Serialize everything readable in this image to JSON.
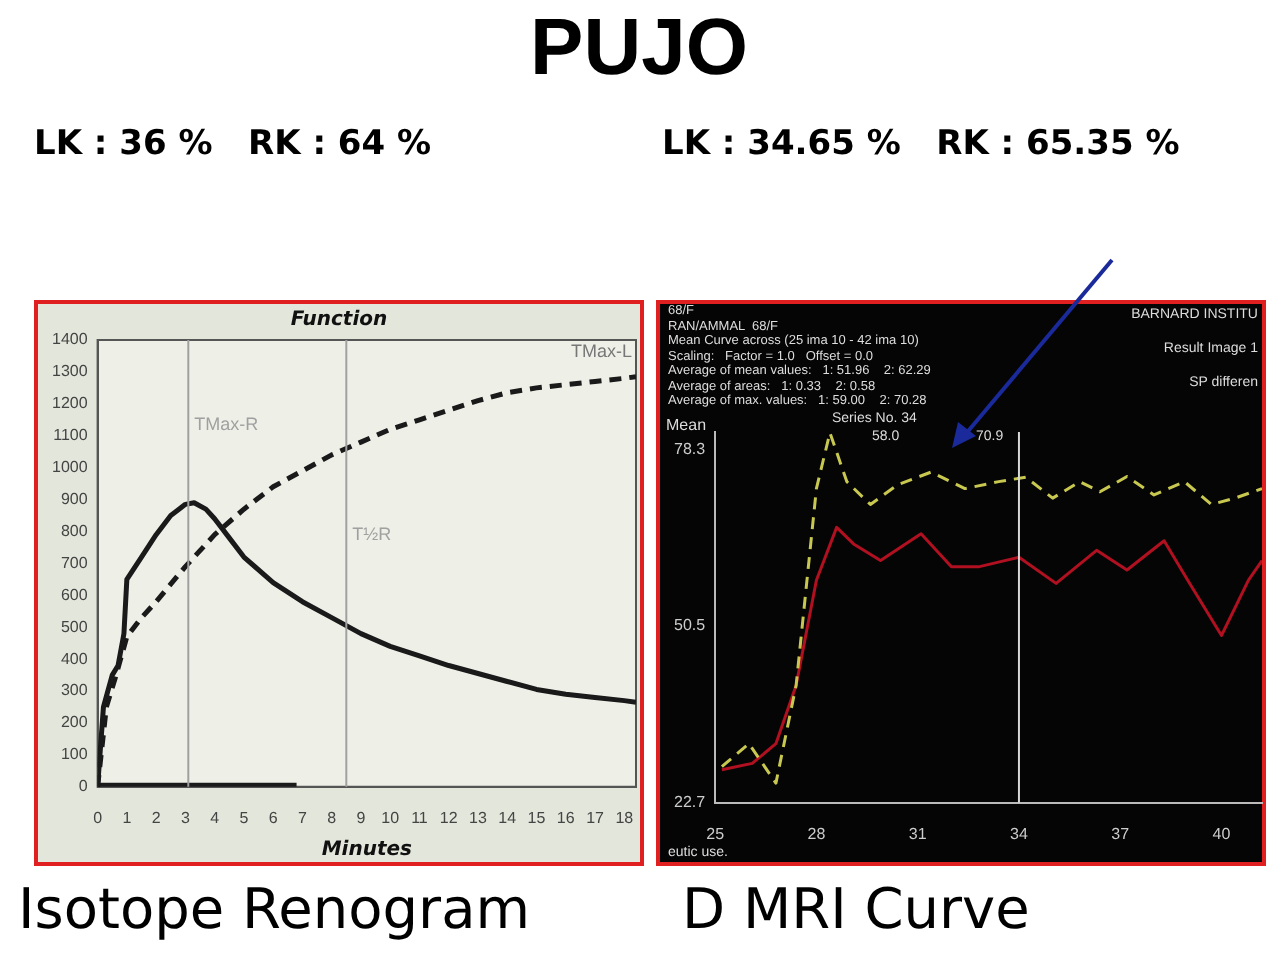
{
  "chart_data": [
    {
      "type": "line",
      "title": "Function",
      "xlabel": "Minutes",
      "xlim": [
        0,
        18.4
      ],
      "xticks": [
        0,
        1,
        2,
        3,
        4,
        5,
        6,
        7,
        8,
        9,
        10,
        11,
        12,
        13,
        14,
        15,
        16,
        17,
        18
      ],
      "ylim": [
        0,
        1400
      ],
      "yticks": [
        0,
        100,
        200,
        300,
        400,
        500,
        600,
        700,
        800,
        900,
        1000,
        1100,
        1200,
        1300,
        1400
      ],
      "grid": false,
      "legend": false,
      "marker": "none",
      "series": [
        {
          "color": "#1a1a1a",
          "line_style": "solid",
          "x": [
            0,
            0.2,
            0.5,
            0.7,
            0.9,
            1,
            1.5,
            2,
            2.5,
            3,
            3.3,
            3.7,
            4,
            4.5,
            5,
            6,
            7,
            8,
            9,
            10,
            11,
            12,
            13,
            14,
            15,
            16,
            17,
            18,
            18.4
          ],
          "values": [
            0,
            250,
            350,
            380,
            480,
            650,
            720,
            790,
            850,
            885,
            890,
            870,
            840,
            780,
            720,
            640,
            580,
            530,
            480,
            440,
            410,
            380,
            355,
            330,
            305,
            290,
            280,
            270,
            265
          ]
        },
        {
          "name": "TMax-L",
          "color": "#1a1a1a",
          "line_style": "dashed",
          "x": [
            0,
            0.3,
            0.6,
            1,
            1.5,
            2,
            3,
            4,
            5,
            6,
            7,
            8,
            9,
            10,
            11,
            12,
            13,
            14,
            15,
            16,
            17,
            18,
            18.4
          ],
          "values": [
            0,
            250,
            340,
            470,
            530,
            580,
            690,
            790,
            870,
            940,
            990,
            1040,
            1080,
            1120,
            1150,
            1180,
            1210,
            1235,
            1250,
            1260,
            1270,
            1280,
            1285
          ]
        },
        {
          "color": "#1a1a1a",
          "line_style": "solid",
          "x": [
            0,
            6.8
          ],
          "values": [
            5,
            5
          ]
        }
      ],
      "ref_lines": [
        {
          "axis": "x",
          "value": 3.1,
          "label": "TMax-R",
          "color": "#a0a0a0"
        },
        {
          "axis": "x",
          "value": 8.5,
          "label": "T½R",
          "color": "#a0a0a0"
        }
      ],
      "annotations": [
        "PUJO",
        "LK : 36 %   RK : 64 %",
        "Isotope Renogram"
      ]
    },
    {
      "type": "line",
      "ylabel": "Mean",
      "xlim": [
        25,
        41.2
      ],
      "xticks": [
        25,
        28,
        31,
        34,
        37,
        40
      ],
      "ylim": [
        22.7,
        81
      ],
      "yticks": [
        22.7,
        50.5,
        78.3
      ],
      "grid": false,
      "legend": false,
      "marker": "none",
      "series": [
        {
          "color": "#c8c850",
          "line_style": "dashed",
          "x": [
            25.2,
            26,
            26.8,
            27.4,
            28,
            28.4,
            28.9,
            29.6,
            30.4,
            31.4,
            32.4,
            33.4,
            34.2,
            35,
            35.8,
            36.4,
            37.2,
            38,
            38.9,
            39.7,
            40.4,
            41.2
          ],
          "values": [
            28.4,
            32,
            25.8,
            41.2,
            72.1,
            80.9,
            73.2,
            69.6,
            72.7,
            74.7,
            72.1,
            73.2,
            73.9,
            70.6,
            73.2,
            71.6,
            74,
            71.1,
            73.2,
            69.6,
            70.6,
            72.1
          ]
        },
        {
          "color": "#b01020",
          "line_style": "solid",
          "x": [
            25.2,
            26.1,
            26.8,
            27.4,
            28,
            28.6,
            29.1,
            29.9,
            31.1,
            32,
            32.8,
            34,
            35.1,
            36.3,
            37.2,
            38.3,
            39,
            40,
            40.8,
            41.2
          ],
          "values": [
            27.9,
            28.9,
            32,
            41.2,
            57.7,
            66,
            63.4,
            60.8,
            65,
            59.8,
            59.8,
            61.3,
            57.2,
            62.4,
            59.3,
            63.9,
            57.7,
            49,
            57.7,
            60.8
          ]
        }
      ],
      "ref_lines": [
        {
          "axis": "x",
          "value": 34,
          "label": null,
          "color": "#d8d8d8"
        }
      ],
      "annotations": [
        "LK : 34.65 %   RK : 65.35 %",
        "D MRI Curve",
        "68/F",
        "RAN/AMMAL  68/F",
        "Mean Curve across (25 ima 10 - 42 ima 10)",
        "Scaling:   Factor = 1.0   Offset = 0.0",
        "Average of mean values:   1: 51.96    2: 62.29",
        "Average of areas:   1: 0.33    2: 0.58",
        "Average of max. values:   1: 59.00    2: 70.28",
        "BARNARD INSTITU",
        "Result Image 1",
        "SP differen",
        "eutic use.",
        "Series No. 34",
        "58.0",
        "70.9"
      ]
    }
  ]
}
